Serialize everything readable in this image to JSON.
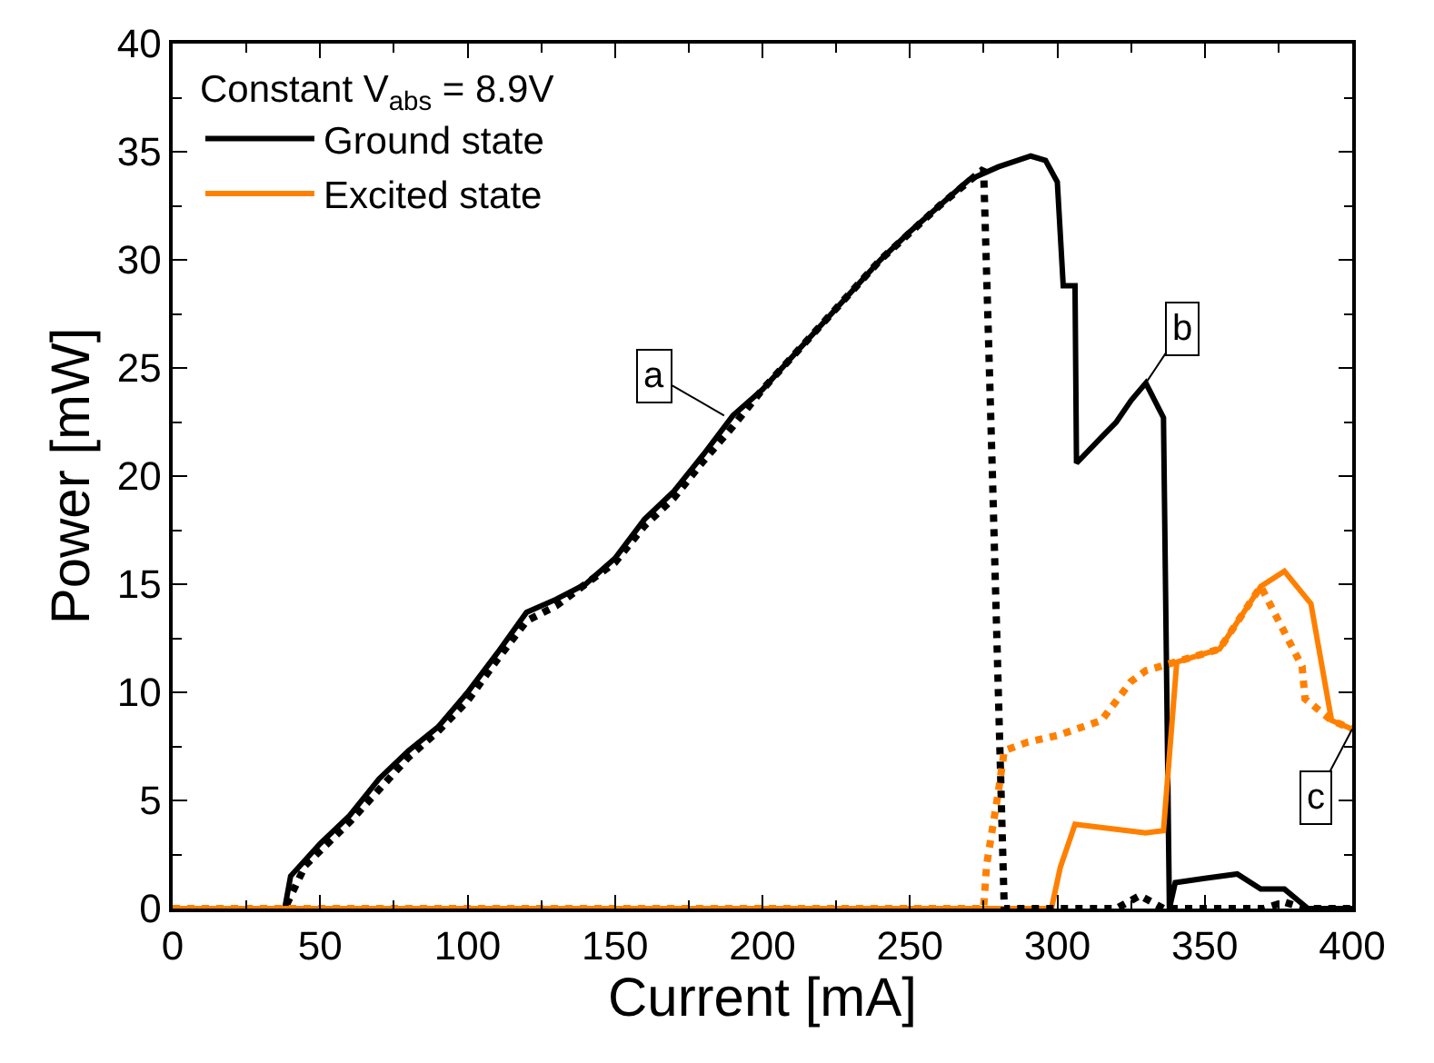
{
  "chart_data": {
    "type": "line",
    "xlabel": "Current [mA]",
    "ylabel": "Power [mW]",
    "legend_title": "Constant V$_{abs}$ = 8.9V",
    "xlim": [
      0,
      400
    ],
    "xticks": [
      0,
      50,
      100,
      150,
      200,
      250,
      300,
      350,
      400
    ],
    "ylim": [
      0,
      40
    ],
    "yticks": [
      0,
      5,
      10,
      15,
      20,
      25,
      30,
      35,
      40
    ],
    "legend": "top left",
    "marker": "none",
    "series": [
      {
        "name": "Ground state",
        "color": "#000000",
        "line_style": "solid",
        "x": [
          0,
          38,
          40,
          50,
          60,
          70,
          80,
          90,
          100,
          110,
          120,
          130,
          140,
          150,
          160,
          170,
          180,
          190,
          200,
          210,
          220,
          230,
          240,
          250,
          260,
          270,
          280,
          291,
          296,
          300,
          302,
          306,
          306.5,
          315,
          320,
          325,
          330,
          336,
          338,
          340,
          350,
          361,
          369,
          377,
          385,
          400
        ],
        "values": [
          0,
          0,
          1.5,
          3,
          4.3,
          6,
          7.3,
          8.4,
          10,
          11.8,
          13.7,
          14.3,
          15,
          16.2,
          18,
          19.3,
          21,
          22.8,
          24,
          25.5,
          27,
          28.5,
          30,
          31.3,
          32.5,
          33.7,
          34.3,
          34.8,
          34.6,
          33.6,
          28.8,
          28.8,
          20.6,
          21.8,
          22.5,
          23.5,
          24.3,
          22.7,
          0,
          1.2,
          1.4,
          1.6,
          0.9,
          0.9,
          0,
          0
        ]
      },
      {
        "name": "Excited state",
        "color": "#ff8000",
        "line_style": "solid",
        "x": [
          0,
          298,
          301,
          306,
          330,
          336,
          340.5,
          355,
          369,
          377,
          386,
          393,
          400
        ],
        "values": [
          0,
          0,
          1.9,
          3.9,
          3.5,
          3.6,
          11.4,
          12,
          14.9,
          15.6,
          14.1,
          8.7,
          8.3
        ]
      },
      {
        "color": "#000000",
        "line_style": "dotted",
        "x": [
          0,
          38,
          45,
          60,
          70,
          80,
          90,
          100,
          110,
          120,
          130,
          140,
          150,
          160,
          170,
          180,
          190,
          200,
          220,
          240,
          260,
          275,
          278,
          281,
          282,
          300,
          320,
          328,
          336,
          370,
          377,
          384,
          400
        ],
        "values": [
          0,
          0,
          2,
          4,
          5.5,
          7,
          8.2,
          9.6,
          11.5,
          13.3,
          14,
          15,
          16,
          17.7,
          19,
          20.7,
          22.3,
          24,
          27,
          30,
          32.5,
          34.2,
          20,
          5,
          0,
          0,
          0,
          0.6,
          0,
          0,
          0.3,
          0,
          0
        ]
      },
      {
        "color": "#ff8000",
        "line_style": "dotted",
        "x": [
          0,
          275,
          276,
          278,
          280,
          282,
          290,
          300,
          315,
          325,
          330,
          340,
          355,
          369,
          383,
          384,
          393,
          400
        ],
        "values": [
          0,
          0,
          2,
          3.7,
          5.4,
          7.3,
          7.7,
          8,
          8.7,
          10.5,
          11,
          11.4,
          12,
          14.9,
          11.2,
          9.7,
          8.7,
          8.3
        ]
      }
    ],
    "annotations": [
      {
        "text": "a",
        "x": 187,
        "y": 22.8
      },
      {
        "text": "b",
        "x": 330,
        "y": 24.3
      },
      {
        "text": "c",
        "x": 400,
        "y": 8.3
      }
    ]
  }
}
